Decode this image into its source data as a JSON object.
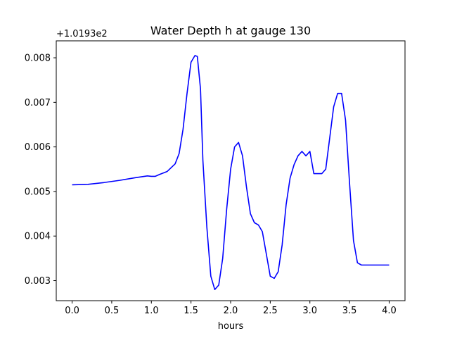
{
  "chart_data": {
    "type": "line",
    "title": "Water Depth h at gauge 130",
    "xlabel": "hours",
    "ylabel": "",
    "y_offset_label": "+1.0193e2",
    "xlim": [
      -0.2,
      4.2
    ],
    "ylim": [
      0.00255,
      0.00838
    ],
    "x_ticks": [
      0.0,
      0.5,
      1.0,
      1.5,
      2.0,
      2.5,
      3.0,
      3.5,
      4.0
    ],
    "x_tick_labels": [
      "0.0",
      "0.5",
      "1.0",
      "1.5",
      "2.0",
      "2.5",
      "3.0",
      "3.5",
      "4.0"
    ],
    "y_ticks": [
      0.003,
      0.004,
      0.005,
      0.006,
      0.007,
      0.008
    ],
    "y_tick_labels": [
      "0.003",
      "0.004",
      "0.005",
      "0.006",
      "0.007",
      "0.008"
    ],
    "grid": false,
    "series": [
      {
        "color": "#0000ff",
        "x": [
          0.0,
          0.2,
          0.4,
          0.6,
          0.8,
          0.95,
          1.0,
          1.05,
          1.1,
          1.2,
          1.3,
          1.35,
          1.4,
          1.45,
          1.5,
          1.55,
          1.58,
          1.62,
          1.65,
          1.7,
          1.75,
          1.8,
          1.85,
          1.9,
          1.95,
          2.0,
          2.05,
          2.1,
          2.15,
          2.2,
          2.25,
          2.3,
          2.35,
          2.4,
          2.45,
          2.5,
          2.55,
          2.6,
          2.65,
          2.7,
          2.75,
          2.8,
          2.85,
          2.9,
          2.95,
          3.0,
          3.05,
          3.1,
          3.15,
          3.2,
          3.25,
          3.3,
          3.35,
          3.4,
          3.45,
          3.5,
          3.55,
          3.6,
          3.65,
          3.7,
          3.75,
          3.8,
          3.85,
          3.9,
          3.95,
          4.0
        ],
        "y": [
          0.00515,
          0.00516,
          0.0052,
          0.00525,
          0.00531,
          0.00535,
          0.00534,
          0.00534,
          0.00538,
          0.00545,
          0.00562,
          0.00585,
          0.0064,
          0.0072,
          0.0079,
          0.00805,
          0.00803,
          0.0073,
          0.0057,
          0.0042,
          0.0031,
          0.0028,
          0.0029,
          0.0035,
          0.0046,
          0.0055,
          0.006,
          0.0061,
          0.0058,
          0.0051,
          0.0045,
          0.0043,
          0.00425,
          0.0041,
          0.0036,
          0.0031,
          0.00305,
          0.0032,
          0.0038,
          0.0047,
          0.0053,
          0.0056,
          0.0058,
          0.0059,
          0.0058,
          0.0059,
          0.0054,
          0.0054,
          0.0054,
          0.0055,
          0.0062,
          0.0069,
          0.0072,
          0.0072,
          0.0066,
          0.0052,
          0.0039,
          0.0034,
          0.00335,
          0.00335,
          0.00335,
          0.00335,
          0.00335,
          0.00335,
          0.00335,
          0.00335
        ]
      }
    ]
  }
}
